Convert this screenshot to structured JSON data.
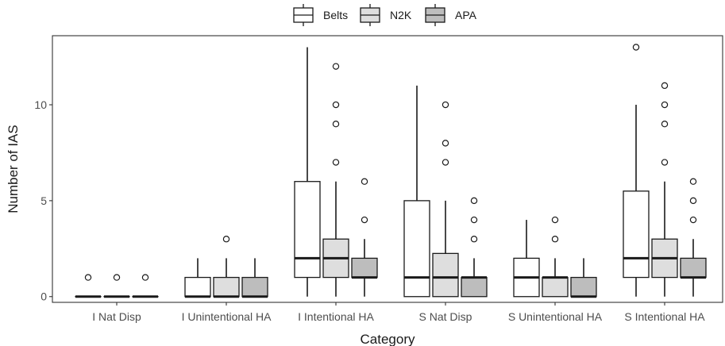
{
  "chart_data": {
    "type": "boxplot",
    "title": "",
    "xlabel": "Category",
    "ylabel": "Number of IAS",
    "ylim": [
      -0.3,
      13.6
    ],
    "yticks": [
      0,
      5,
      10
    ],
    "ytick_labels": [
      "0",
      "5",
      "10"
    ],
    "grid": false,
    "legend_position": "top",
    "categories": [
      "I Nat Disp",
      "I Unintentional HA",
      "I Intentional HA",
      "S Nat Disp",
      "S Unintentional HA",
      "S Intentional HA"
    ],
    "series": [
      {
        "name": "Belts",
        "fill": "#ffffff",
        "boxes": [
          {
            "min": 0,
            "q1": 0,
            "median": 0,
            "q3": 0,
            "max": 0,
            "outliers": [
              1
            ]
          },
          {
            "min": 0,
            "q1": 0,
            "median": 0,
            "q3": 1,
            "max": 2,
            "outliers": []
          },
          {
            "min": 0,
            "q1": 1,
            "median": 2,
            "q3": 6,
            "max": 13,
            "outliers": []
          },
          {
            "min": 0,
            "q1": 0,
            "median": 1,
            "q3": 5,
            "max": 11,
            "outliers": []
          },
          {
            "min": 0,
            "q1": 0,
            "median": 1,
            "q3": 2,
            "max": 4,
            "outliers": []
          },
          {
            "min": 0,
            "q1": 1,
            "median": 2,
            "q3": 5.5,
            "max": 10,
            "outliers": [
              13
            ]
          }
        ]
      },
      {
        "name": "N2K",
        "fill": "#dedede",
        "boxes": [
          {
            "min": 0,
            "q1": 0,
            "median": 0,
            "q3": 0,
            "max": 0,
            "outliers": [
              1
            ]
          },
          {
            "min": 0,
            "q1": 0,
            "median": 0,
            "q3": 1,
            "max": 2,
            "outliers": [
              3
            ]
          },
          {
            "min": 0,
            "q1": 1,
            "median": 2,
            "q3": 3,
            "max": 6,
            "outliers": [
              7,
              9,
              10,
              12
            ]
          },
          {
            "min": 0,
            "q1": 0,
            "median": 1,
            "q3": 2.25,
            "max": 5,
            "outliers": [
              7,
              8,
              10
            ]
          },
          {
            "min": 0,
            "q1": 0,
            "median": 1,
            "q3": 1,
            "max": 2,
            "outliers": [
              3,
              4
            ]
          },
          {
            "min": 0,
            "q1": 1,
            "median": 2,
            "q3": 3,
            "max": 6,
            "outliers": [
              7,
              9,
              10,
              11
            ]
          }
        ]
      },
      {
        "name": "APA",
        "fill": "#bdbdbd",
        "boxes": [
          {
            "min": 0,
            "q1": 0,
            "median": 0,
            "q3": 0,
            "max": 0,
            "outliers": [
              1
            ]
          },
          {
            "min": 0,
            "q1": 0,
            "median": 0,
            "q3": 1,
            "max": 2,
            "outliers": []
          },
          {
            "min": 0,
            "q1": 1,
            "median": 1,
            "q3": 2,
            "max": 3,
            "outliers": [
              4,
              6
            ]
          },
          {
            "min": 0,
            "q1": 0,
            "median": 1,
            "q3": 1,
            "max": 2,
            "outliers": [
              3,
              4,
              5
            ]
          },
          {
            "min": 0,
            "q1": 0,
            "median": 0,
            "q3": 1,
            "max": 2,
            "outliers": []
          },
          {
            "min": 0,
            "q1": 1,
            "median": 1,
            "q3": 2,
            "max": 3,
            "outliers": [
              4,
              5,
              6
            ]
          }
        ]
      }
    ]
  }
}
